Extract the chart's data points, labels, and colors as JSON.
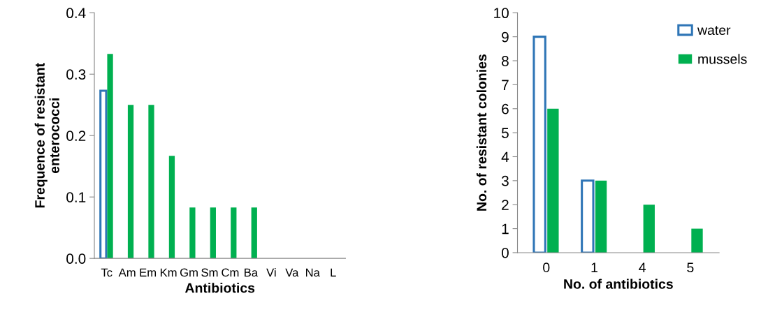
{
  "chart_data": [
    {
      "type": "bar",
      "xlabel": "Antibiotics",
      "ylabel": "Frequence of resistant\nenterococci",
      "categories": [
        "Tc",
        "Am",
        "Em",
        "Km",
        "Gm",
        "Sm",
        "Cm",
        "Ba",
        "Vi",
        "Va",
        "Na",
        "L"
      ],
      "series": [
        {
          "color": "#2e75b6",
          "values": [
            0.273,
            null,
            null,
            null,
            null,
            null,
            null,
            null,
            null,
            null,
            null,
            null
          ]
        },
        {
          "color": "#00b050",
          "values": [
            0.333,
            0.25,
            0.25,
            0.167,
            0.083,
            0.083,
            0.083,
            0.083,
            0,
            0,
            0,
            0
          ]
        }
      ],
      "ylim": [
        0,
        0.4
      ],
      "yticks": [
        {
          "value": 0,
          "label": "0.0"
        },
        0.1,
        0.2,
        0.3,
        0.4
      ],
      "grid": false,
      "legend": false
    },
    {
      "type": "bar",
      "xlabel": "No. of antibiotics",
      "ylabel": "No. of resistant colonies",
      "categories": [
        "0",
        "1",
        "4",
        "5"
      ],
      "series": [
        {
          "name": "water",
          "color": "#2e75b6",
          "values": [
            9,
            3,
            null,
            null
          ]
        },
        {
          "name": "mussels",
          "color": "#00b050",
          "values": [
            6,
            3,
            2,
            1
          ]
        }
      ],
      "ylim": [
        0,
        10
      ],
      "yticks": [
        0,
        1,
        2,
        3,
        4,
        5,
        6,
        7,
        8,
        9,
        10
      ],
      "grid": false,
      "legend": "top right"
    }
  ]
}
